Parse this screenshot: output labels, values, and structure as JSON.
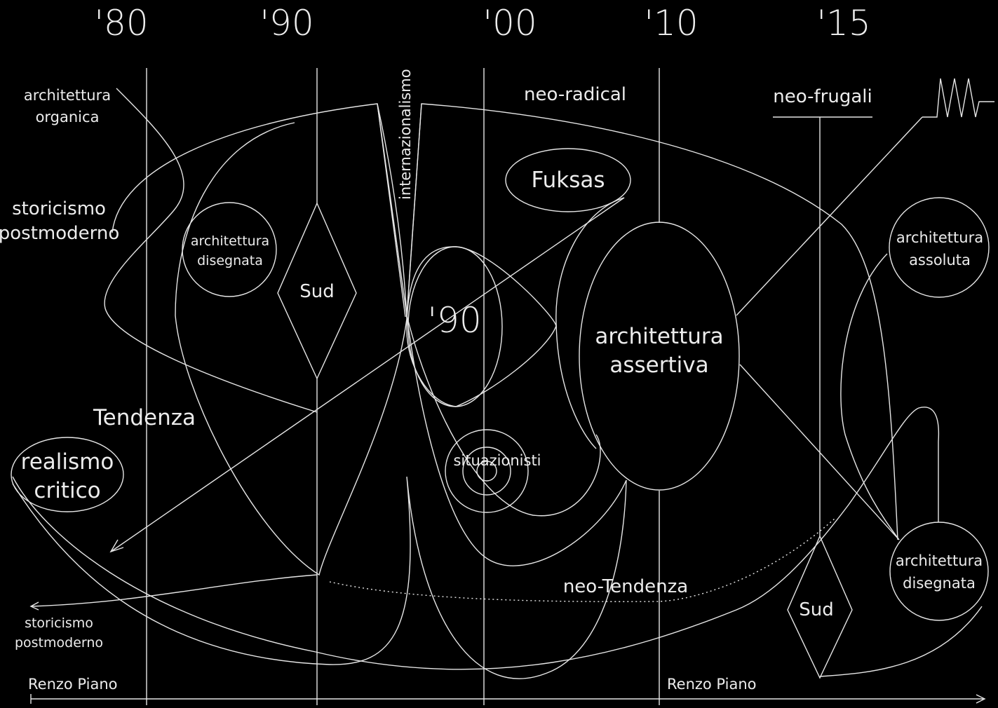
{
  "years": [
    "'80",
    "'90",
    "'00",
    "'10",
    "'15"
  ],
  "labels": {
    "architettura_organica": [
      "architettura",
      "organica"
    ],
    "storicismo_postmoderno_top": [
      "storicismo",
      "postmoderno"
    ],
    "architettura_disegnata_left": [
      "architettura",
      "disegnata"
    ],
    "sud_left": "Sud",
    "internazionalismo": "internazionalismo",
    "neo_radical": "neo-radical",
    "neo_frugali": "neo-frugali",
    "fuksas": "Fuksas",
    "center_90": "'90",
    "architettura_assertiva": [
      "architettura",
      "assertiva"
    ],
    "architettura_assoluta": [
      "architettura",
      "assoluta"
    ],
    "tendenza": "Tendenza",
    "realismo_critico": [
      "realismo",
      "critico"
    ],
    "situazionisti": "situazionisti",
    "neo_tendenza": "neo-Tendenza",
    "architettura_disegnata_right": [
      "architettura",
      "disegnata"
    ],
    "sud_right": "Sud",
    "storicismo_postmoderno_bottom": [
      "storicismo",
      "postmoderno"
    ],
    "renzo_piano_left": "Renzo Piano",
    "renzo_piano_right": "Renzo Piano"
  },
  "colors": {
    "background": "#000000",
    "foreground": "#e6e6e6"
  }
}
